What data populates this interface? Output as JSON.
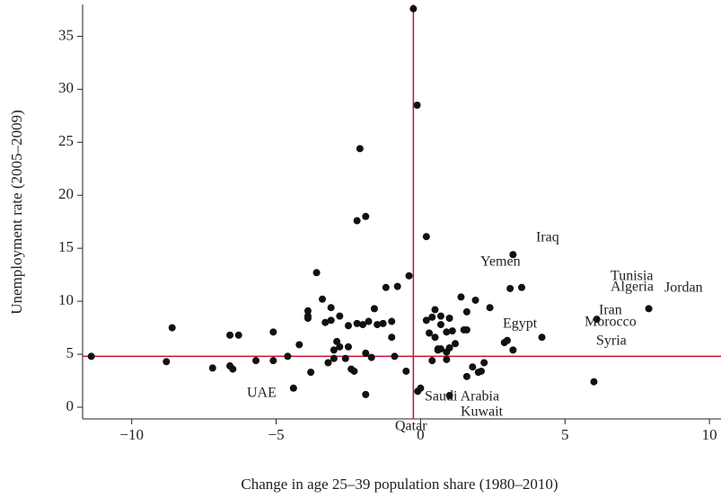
{
  "chart_data": {
    "type": "scatter",
    "x_label": "Change in age 25–39 population share (1980–2010)",
    "y_label": "Unemployment rate (2005–2009)",
    "xlim": [
      -11.7,
      10.4
    ],
    "ylim": [
      -1.1,
      38
    ],
    "xticks": [
      {
        "value": -10,
        "label": "−10"
      },
      {
        "value": -5,
        "label": "−5"
      },
      0,
      5,
      10
    ],
    "yticks": [
      0,
      5,
      10,
      15,
      20,
      25,
      30,
      35
    ],
    "reference_lines": {
      "x": -0.25,
      "y": 4.8,
      "color": "#c8102e"
    },
    "color": "#111111",
    "grid": false,
    "annotations": [
      "Iraq",
      "Yemen",
      "Tunisia",
      "Algeria",
      "Jordan",
      "Iran",
      "Morocco",
      "Egypt",
      "Syria",
      "Saudi Arabia",
      "UAE",
      "Kuwait",
      "Qatar"
    ],
    "x": [
      -0.25,
      -0.12,
      -2.1,
      -1.9,
      -2.2,
      0.2,
      3.2,
      -3.6,
      -0.4,
      3.1,
      3.5,
      -0.8,
      -1.2,
      -3.4,
      1.4,
      1.9,
      2.4,
      -3.1,
      -3.9,
      -1.6,
      0.5,
      1.0,
      1.6,
      7.9,
      6.1,
      4.2,
      6.0,
      3.0,
      -11.4,
      -8.6,
      -8.8,
      -6.6,
      -6.3,
      -5.1,
      -7.2,
      -6.6,
      -6.5,
      -5.7,
      -5.1,
      -4.6,
      -4.2,
      -3.9,
      -3.9,
      -3.3,
      -3.1,
      -2.8,
      -2.5,
      -2.2,
      -2.0,
      -1.8,
      -1.5,
      -1.3,
      -1.0,
      -2.9,
      -2.8,
      -2.5,
      -3.0,
      -3.2,
      -3.0,
      -2.6,
      -2.3,
      -2.4,
      -1.9,
      -1.7,
      -1.0,
      -0.9,
      -4.4,
      -3.8,
      -1.9,
      -0.5,
      -0.1,
      0.0,
      0.4,
      0.6,
      0.7,
      1.0,
      0.9,
      1.2,
      1.5,
      1.6,
      0.2,
      0.4,
      0.7,
      0.3,
      0.5,
      0.9,
      1.1,
      0.7,
      1.6,
      1.8,
      2.0,
      2.1,
      2.2,
      1.0,
      2.9,
      3.2,
      0.6,
      0.9
    ],
    "values": [
      37.6,
      28.5,
      24.4,
      18.0,
      17.6,
      16.1,
      14.4,
      12.7,
      12.4,
      11.2,
      11.3,
      11.4,
      11.3,
      10.2,
      10.4,
      10.1,
      9.4,
      9.4,
      9.1,
      9.3,
      9.2,
      8.4,
      9.0,
      9.3,
      8.3,
      6.6,
      2.4,
      6.3,
      4.8,
      7.5,
      4.3,
      6.8,
      6.8,
      7.1,
      3.7,
      3.9,
      3.6,
      4.4,
      4.4,
      4.8,
      5.9,
      8.4,
      8.6,
      8.0,
      8.2,
      8.6,
      7.7,
      7.9,
      7.8,
      8.1,
      7.8,
      7.9,
      8.1,
      6.2,
      5.7,
      5.7,
      5.4,
      4.2,
      4.6,
      4.6,
      3.4,
      3.6,
      5.1,
      4.7,
      6.6,
      4.8,
      1.8,
      3.3,
      1.2,
      3.4,
      1.5,
      1.8,
      4.4,
      5.4,
      5.5,
      5.6,
      4.5,
      6.0,
      7.3,
      7.3,
      8.2,
      8.5,
      7.8,
      7.0,
      6.6,
      7.1,
      7.2,
      8.6,
      2.9,
      3.8,
      3.3,
      3.4,
      4.2,
      1.1,
      6.1,
      5.4,
      5.5,
      5.2
    ]
  }
}
